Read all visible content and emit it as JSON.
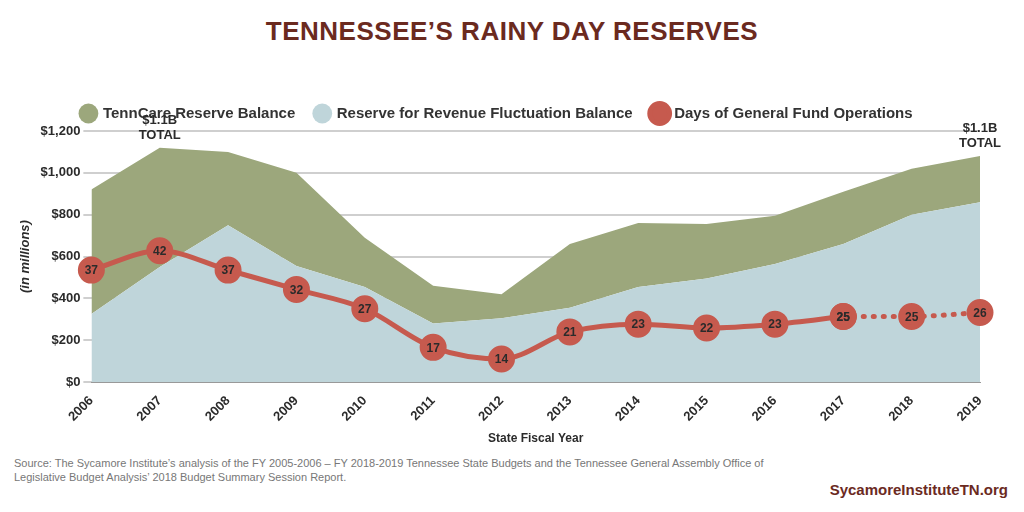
{
  "chart_data": {
    "type": "area",
    "title": "TENNESSEE’S RAINY DAY RESERVES",
    "x_label": "State Fiscal Year",
    "y_label": "(in millions)",
    "categories": [
      "2006",
      "2007",
      "2008",
      "2009",
      "2010",
      "2011",
      "2012",
      "2013",
      "2014",
      "2015",
      "2016",
      "2017",
      "2018",
      "2019"
    ],
    "stacked": true,
    "grid": true,
    "legend": "top",
    "series": [
      {
        "name": "TennCare Reserve Balance",
        "type": "area",
        "color": "#9ca77c",
        "values": [
          595,
          570,
          350,
          445,
          235,
          180,
          115,
          305,
          305,
          260,
          230,
          250,
          220,
          220
        ]
      },
      {
        "name": "Reserve for Revenue Fluctuation Balance",
        "type": "area",
        "color": "#bfd5da",
        "values": [
          325,
          550,
          750,
          555,
          455,
          280,
          305,
          355,
          455,
          495,
          565,
          660,
          800,
          860
        ]
      },
      {
        "name": "Days of General Fund Operations",
        "type": "line",
        "axis": "y2",
        "color": "#c65a4e",
        "marker": "circle",
        "line_style": "solid",
        "data_labels": true,
        "values": [
          37,
          42,
          37,
          32,
          27,
          17,
          14,
          21,
          23,
          22,
          23,
          25,
          null,
          null
        ]
      },
      {
        "name": "Days of General Fund Operations",
        "type": "line",
        "axis": "y2",
        "color": "#c65a4e",
        "marker": "circle",
        "line_style": "dotted",
        "data_labels": true,
        "values": [
          null,
          null,
          null,
          null,
          null,
          null,
          null,
          null,
          null,
          null,
          null,
          25,
          25,
          26
        ]
      }
    ],
    "ylim": [
      0,
      1200
    ],
    "yticks": [
      {
        "value": 0,
        "label": "$0"
      },
      {
        "value": 200,
        "label": "$200"
      },
      {
        "value": 400,
        "label": "$400"
      },
      {
        "value": 600,
        "label": "$600"
      },
      {
        "value": 800,
        "label": "$800"
      },
      {
        "value": 1000,
        "label": "$1,000"
      },
      {
        "value": 1200,
        "label": "$1,200"
      }
    ],
    "y2lim": [
      8,
      73
    ],
    "annotations": [
      {
        "x": "2007",
        "text": [
          "$1.1B",
          "TOTAL"
        ]
      },
      {
        "x": "2019",
        "text": [
          "$1.1B",
          "TOTAL"
        ]
      }
    ],
    "source": "Source: The Sycamore Institute’s analysis of the FY 2005-2006 – FY 2018-2019 Tennessee State Budgets and the Tennessee General Assembly Office of Legislative Budget Analysis’ 2018 Budget Summary Session Report.",
    "credit": "SycamoreInstituteTN.org"
  }
}
